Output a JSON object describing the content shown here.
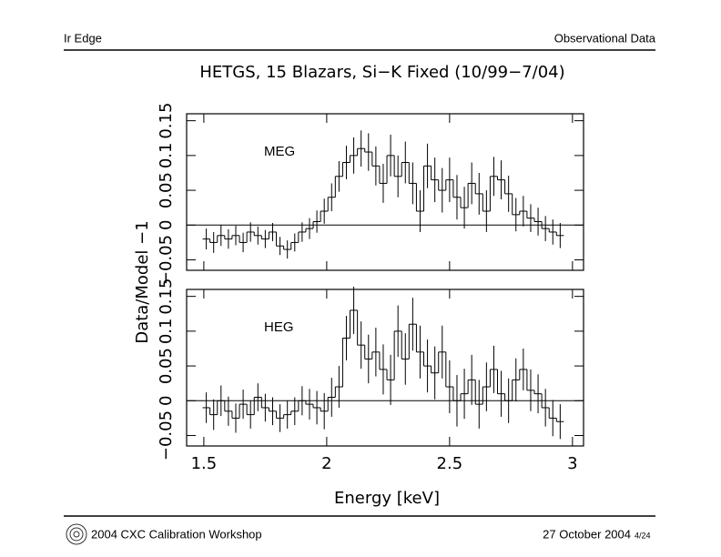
{
  "header": {
    "left": "Ir Edge",
    "right": "Observational Data"
  },
  "footer": {
    "left": "2004 CXC Calibration Workshop",
    "right": "27 October 2004",
    "page": "4/24"
  },
  "chart_data": [
    {
      "type": "step",
      "title": "HETGS, 15 Blazars, Si−K Fixed (10/99−7/04)",
      "y_label": "Data/Model −1",
      "label": "MEG",
      "x": [
        1.51,
        1.54,
        1.57,
        1.6,
        1.63,
        1.66,
        1.69,
        1.72,
        1.75,
        1.78,
        1.81,
        1.84,
        1.87,
        1.9,
        1.93,
        1.96,
        1.99,
        2.02,
        2.05,
        2.08,
        2.11,
        2.14,
        2.17,
        2.2,
        2.23,
        2.26,
        2.29,
        2.32,
        2.35,
        2.38,
        2.41,
        2.44,
        2.47,
        2.5,
        2.53,
        2.56,
        2.59,
        2.62,
        2.65,
        2.68,
        2.71,
        2.74,
        2.77,
        2.8,
        2.83,
        2.86,
        2.89,
        2.92,
        2.95
      ],
      "values": [
        -0.02,
        -0.025,
        -0.015,
        -0.02,
        -0.015,
        -0.025,
        -0.01,
        -0.015,
        -0.02,
        -0.01,
        -0.03,
        -0.035,
        -0.025,
        -0.01,
        -0.005,
        0.005,
        0.02,
        0.04,
        0.07,
        0.09,
        0.1,
        0.11,
        0.105,
        0.085,
        0.06,
        0.1,
        0.07,
        0.09,
        0.06,
        0.02,
        0.085,
        0.065,
        0.05,
        0.065,
        0.04,
        0.025,
        0.06,
        0.045,
        0.02,
        0.07,
        0.065,
        0.045,
        0.015,
        0.02,
        0.01,
        0.005,
        -0.005,
        -0.01,
        -0.015
      ],
      "errors": [
        0.015,
        0.015,
        0.015,
        0.014,
        0.014,
        0.014,
        0.014,
        0.013,
        0.013,
        0.013,
        0.013,
        0.013,
        0.013,
        0.014,
        0.015,
        0.016,
        0.018,
        0.02,
        0.022,
        0.024,
        0.026,
        0.026,
        0.027,
        0.028,
        0.028,
        0.03,
        0.03,
        0.03,
        0.03,
        0.03,
        0.032,
        0.032,
        0.032,
        0.032,
        0.032,
        0.03,
        0.03,
        0.03,
        0.03,
        0.028,
        0.028,
        0.026,
        0.024,
        0.022,
        0.02,
        0.02,
        0.018,
        0.018,
        0.018
      ],
      "color": "#000000",
      "xlim": [
        1.43,
        3.045
      ],
      "ylim": [
        -0.065,
        0.16
      ],
      "xticks": [
        1.5,
        2,
        2.5,
        3
      ],
      "yticks": [
        {
          "value": -0.05,
          "label": "−0.05"
        },
        0,
        0.05,
        0.1,
        0.15
      ]
    },
    {
      "type": "step",
      "x_label": "Energy [keV]",
      "label": "HEG",
      "x": [
        1.51,
        1.54,
        1.57,
        1.6,
        1.63,
        1.66,
        1.69,
        1.72,
        1.75,
        1.78,
        1.81,
        1.84,
        1.87,
        1.9,
        1.93,
        1.96,
        1.99,
        2.02,
        2.05,
        2.08,
        2.11,
        2.14,
        2.17,
        2.2,
        2.23,
        2.26,
        2.29,
        2.32,
        2.35,
        2.38,
        2.41,
        2.44,
        2.47,
        2.5,
        2.53,
        2.56,
        2.59,
        2.62,
        2.65,
        2.68,
        2.71,
        2.74,
        2.77,
        2.8,
        2.83,
        2.86,
        2.89,
        2.92,
        2.95
      ],
      "values": [
        -0.01,
        -0.02,
        0,
        -0.015,
        -0.025,
        -0.005,
        -0.02,
        0.005,
        -0.01,
        -0.015,
        -0.025,
        -0.02,
        -0.015,
        0,
        -0.005,
        -0.01,
        -0.015,
        0.005,
        0.02,
        0.09,
        0.13,
        0.08,
        0.06,
        0.07,
        0.045,
        0.03,
        0.1,
        0.06,
        0.11,
        0.07,
        0.05,
        0.04,
        0.07,
        0.02,
        0,
        0.01,
        0.03,
        -0.005,
        0.02,
        0.045,
        0.01,
        0,
        0.03,
        0.045,
        0.015,
        0.01,
        -0.01,
        -0.025,
        -0.03
      ],
      "errors": [
        0.022,
        0.022,
        0.022,
        0.021,
        0.021,
        0.021,
        0.02,
        0.02,
        0.02,
        0.02,
        0.02,
        0.02,
        0.02,
        0.021,
        0.022,
        0.024,
        0.026,
        0.028,
        0.03,
        0.032,
        0.034,
        0.034,
        0.035,
        0.035,
        0.036,
        0.036,
        0.037,
        0.037,
        0.038,
        0.038,
        0.038,
        0.038,
        0.038,
        0.038,
        0.037,
        0.036,
        0.036,
        0.035,
        0.035,
        0.034,
        0.033,
        0.032,
        0.031,
        0.03,
        0.03,
        0.028,
        0.027,
        0.026,
        0.025
      ],
      "color": "#000000",
      "xlim": [
        1.43,
        3.045
      ],
      "ylim": [
        -0.065,
        0.16
      ],
      "xticks": [
        1.5,
        2,
        2.5,
        3
      ],
      "yticks": [
        {
          "value": -0.05,
          "label": "−0.05"
        },
        0,
        0.05,
        0.1,
        0.15
      ]
    }
  ]
}
